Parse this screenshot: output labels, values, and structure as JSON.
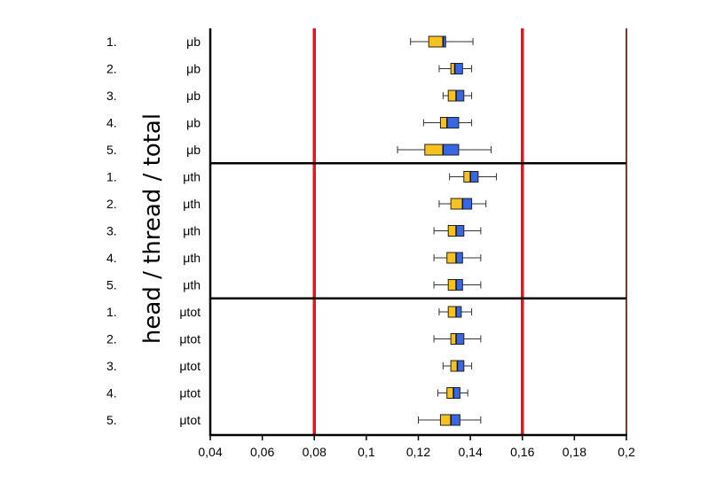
{
  "chart_data": {
    "type": "boxplot",
    "ylabel": "head / thread / total",
    "xlim": [
      0.04,
      0.2
    ],
    "x_ticks": [
      "0,04",
      "0,06",
      "0,08",
      "0,1",
      "0,12",
      "0,14",
      "0,16",
      "0,18",
      "0,2"
    ],
    "x_tick_values": [
      0.04,
      0.06,
      0.08,
      0.1,
      0.12,
      0.14,
      0.16,
      0.18,
      0.2
    ],
    "reference_lines": [
      0.08,
      0.16
    ],
    "reference_line_color": "#e8141b",
    "lower_box_color": "#f7c21e",
    "upper_box_color": "#3766e6",
    "rows": [
      {
        "index": "1.",
        "label": "μb",
        "min": 0.117,
        "q1": 0.124,
        "median": 0.1295,
        "q3": 0.1305,
        "max": 0.141
      },
      {
        "index": "2.",
        "label": "μb",
        "min": 0.128,
        "q1": 0.1325,
        "median": 0.134,
        "q3": 0.137,
        "max": 0.1405
      },
      {
        "index": "3.",
        "label": "μb",
        "min": 0.1295,
        "q1": 0.1315,
        "median": 0.1345,
        "q3": 0.1375,
        "max": 0.1405
      },
      {
        "index": "4.",
        "label": "μb",
        "min": 0.122,
        "q1": 0.1285,
        "median": 0.131,
        "q3": 0.1355,
        "max": 0.1405
      },
      {
        "index": "5.",
        "label": "μb",
        "min": 0.112,
        "q1": 0.1225,
        "median": 0.1295,
        "q3": 0.1355,
        "max": 0.148
      },
      {
        "index": "1.",
        "label": "μth",
        "min": 0.132,
        "q1": 0.1375,
        "median": 0.14,
        "q3": 0.143,
        "max": 0.15
      },
      {
        "index": "2.",
        "label": "μth",
        "min": 0.128,
        "q1": 0.1325,
        "median": 0.137,
        "q3": 0.1405,
        "max": 0.146
      },
      {
        "index": "3.",
        "label": "μth",
        "min": 0.126,
        "q1": 0.1315,
        "median": 0.1345,
        "q3": 0.1375,
        "max": 0.144
      },
      {
        "index": "4.",
        "label": "μth",
        "min": 0.126,
        "q1": 0.131,
        "median": 0.1345,
        "q3": 0.137,
        "max": 0.144
      },
      {
        "index": "5.",
        "label": "μth",
        "min": 0.126,
        "q1": 0.1315,
        "median": 0.1345,
        "q3": 0.137,
        "max": 0.144
      },
      {
        "index": "1.",
        "label": "μtot",
        "min": 0.128,
        "q1": 0.1315,
        "median": 0.1345,
        "q3": 0.1365,
        "max": 0.1405
      },
      {
        "index": "2.",
        "label": "μtot",
        "min": 0.126,
        "q1": 0.1325,
        "median": 0.1345,
        "q3": 0.1375,
        "max": 0.144
      },
      {
        "index": "3.",
        "label": "μtot",
        "min": 0.1295,
        "q1": 0.1325,
        "median": 0.135,
        "q3": 0.1375,
        "max": 0.1405
      },
      {
        "index": "4.",
        "label": "μtot",
        "min": 0.1275,
        "q1": 0.131,
        "median": 0.1335,
        "q3": 0.136,
        "max": 0.139
      },
      {
        "index": "5.",
        "label": "μtot",
        "min": 0.12,
        "q1": 0.1285,
        "median": 0.1325,
        "q3": 0.136,
        "max": 0.144
      }
    ],
    "group_separators_after_rows": [
      5,
      10
    ]
  }
}
